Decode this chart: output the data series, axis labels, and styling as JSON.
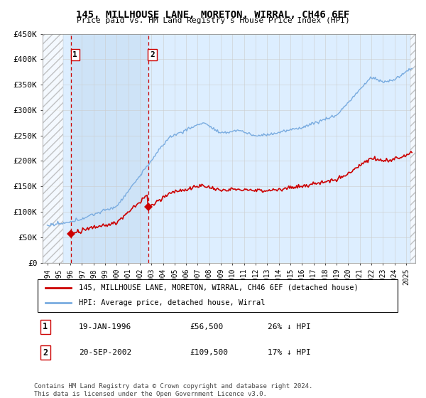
{
  "title": "145, MILLHOUSE LANE, MORETON, WIRRAL, CH46 6EF",
  "subtitle": "Price paid vs. HM Land Registry's House Price Index (HPI)",
  "legend_line1": "145, MILLHOUSE LANE, MORETON, WIRRAL, CH46 6EF (detached house)",
  "legend_line2": "HPI: Average price, detached house, Wirral",
  "footnote": "Contains HM Land Registry data © Crown copyright and database right 2024.\nThis data is licensed under the Open Government Licence v3.0.",
  "purchase1_date": "19-JAN-1996",
  "purchase1_price": 56500,
  "purchase1_pct": "26% ↓ HPI",
  "purchase2_date": "20-SEP-2002",
  "purchase2_price": 109500,
  "purchase2_pct": "17% ↓ HPI",
  "ylim": [
    0,
    450000
  ],
  "yticks": [
    0,
    50000,
    100000,
    150000,
    200000,
    250000,
    300000,
    350000,
    400000,
    450000
  ],
  "ytick_labels": [
    "£0",
    "£50K",
    "£100K",
    "£150K",
    "£200K",
    "£250K",
    "£300K",
    "£350K",
    "£400K",
    "£450K"
  ],
  "hpi_color": "#7aace0",
  "price_color": "#cc0000",
  "vline_color": "#cc0000",
  "marker_color": "#cc0000",
  "bg_color": "#ddeeff",
  "hatch_color": "#aaaaaa",
  "grid_color": "#cccccc",
  "purchase1_x": 1996.05,
  "purchase2_x": 2002.72,
  "xlim_left": 1993.6,
  "xlim_right": 2025.8,
  "hatch_end": 1995.4,
  "hatch_start_right": 2025.4
}
